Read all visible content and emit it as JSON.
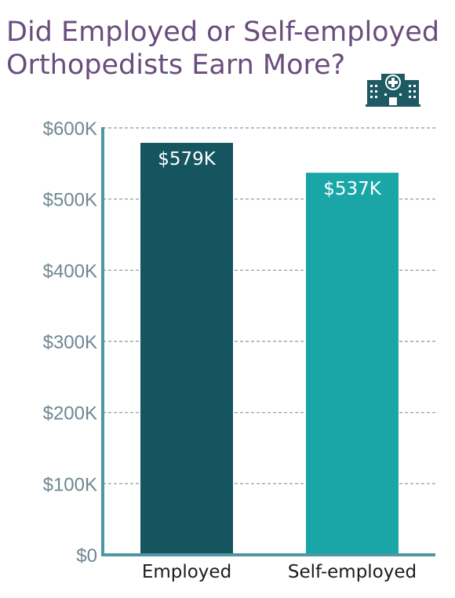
{
  "title_line1": "Did Employed or Self-employed",
  "title_line2": "Orthopedists Earn More?",
  "icon": "hospital-icon",
  "colors": {
    "title": "#6a4d7d",
    "axis": "#4f97a3",
    "grid": "#7a9aa5",
    "tick_text": "#6f8793",
    "icon": "#1d5a63"
  },
  "chart_data": {
    "type": "bar",
    "categories": [
      "Employed",
      "Self-employed"
    ],
    "values": [
      579,
      537
    ],
    "data_labels": [
      "$579K",
      "$537K"
    ],
    "bar_colors": [
      "#155560",
      "#1aa6a7"
    ],
    "yticks": [
      0,
      100,
      200,
      300,
      400,
      500,
      600
    ],
    "ytick_labels": [
      "$0",
      "$100K",
      "$200K",
      "$300K",
      "$400K",
      "$500K",
      "$600K"
    ],
    "ylim": [
      0,
      600
    ],
    "unit": "thousand USD",
    "grid": true,
    "grid_style": "dashed",
    "legend": "none",
    "title": "Did Employed or Self-employed Orthopedists Earn More?",
    "xlabel": "",
    "ylabel": ""
  }
}
